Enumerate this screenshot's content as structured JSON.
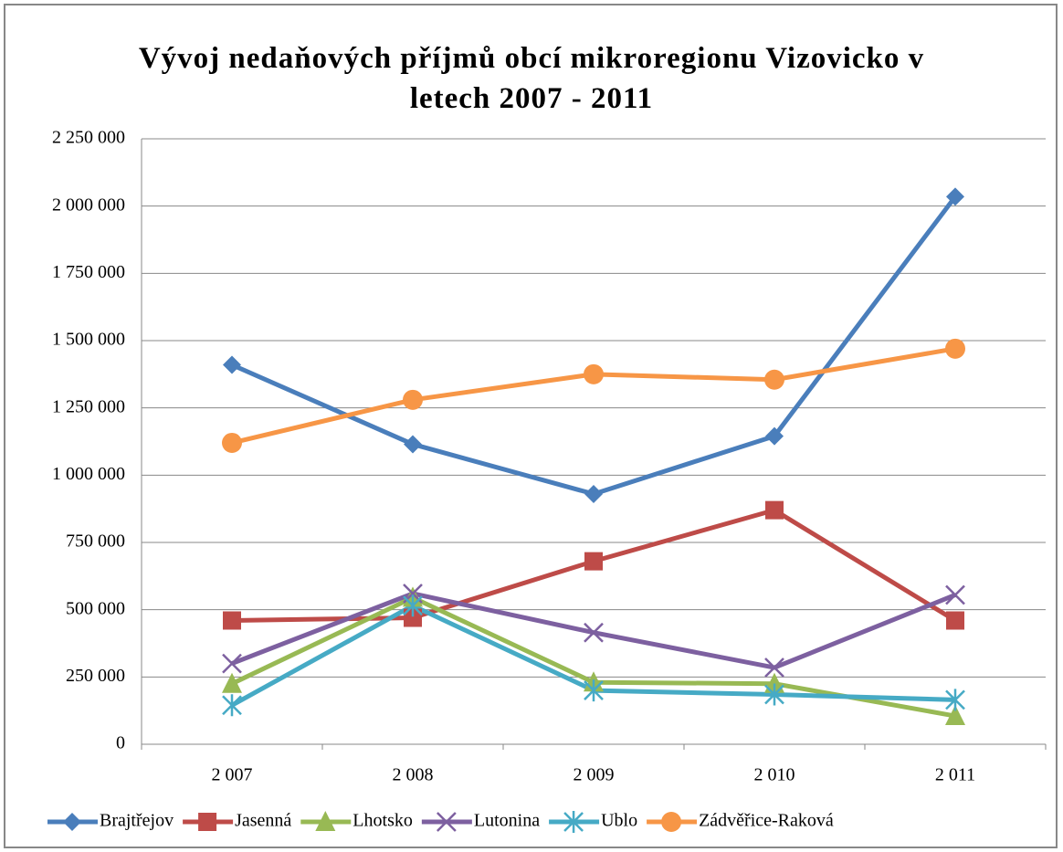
{
  "chart_data": {
    "type": "line",
    "title": "Vývoj nedaňových příjmů obcí mikroregionu Vizovicko v letech 2007 - 2011",
    "categories": [
      "2 007",
      "2 008",
      "2 009",
      "2 010",
      "2 011"
    ],
    "series": [
      {
        "name": "Brajtřejov",
        "color": "#4a7ebb",
        "marker": "diamond",
        "values": [
          1410000,
          1115000,
          930000,
          1145000,
          2035000
        ]
      },
      {
        "name": "Jasenná",
        "color": "#be4b48",
        "marker": "square",
        "values": [
          460000,
          470000,
          680000,
          870000,
          460000
        ]
      },
      {
        "name": "Lhotsko",
        "color": "#98b954",
        "marker": "triangle",
        "values": [
          225000,
          545000,
          230000,
          225000,
          105000
        ]
      },
      {
        "name": "Lutonina",
        "color": "#7d60a0",
        "marker": "x",
        "values": [
          300000,
          560000,
          415000,
          285000,
          555000
        ]
      },
      {
        "name": "Ublo",
        "color": "#46aac5",
        "marker": "star",
        "values": [
          145000,
          515000,
          200000,
          185000,
          165000
        ]
      },
      {
        "name": "Zádvěřice-Raková",
        "color": "#f79646",
        "marker": "circle",
        "values": [
          1120000,
          1280000,
          1375000,
          1355000,
          1470000
        ]
      }
    ],
    "ylim": [
      0,
      2250000
    ],
    "yticks": [
      0,
      {
        "value": 250000,
        "label": "250 000"
      },
      {
        "value": 500000,
        "label": "500 000"
      },
      {
        "value": 750000,
        "label": "750 000"
      },
      {
        "value": 1000000,
        "label": "1 000 000"
      },
      {
        "value": 1250000,
        "label": "1 250 000"
      },
      {
        "value": 1500000,
        "label": "1 500 000"
      },
      {
        "value": 1750000,
        "label": "1 750 000"
      },
      {
        "value": 2000000,
        "label": "2 000 000"
      },
      {
        "value": 2250000,
        "label": "2 250 000"
      }
    ],
    "grid": true,
    "legend": "bottom"
  }
}
